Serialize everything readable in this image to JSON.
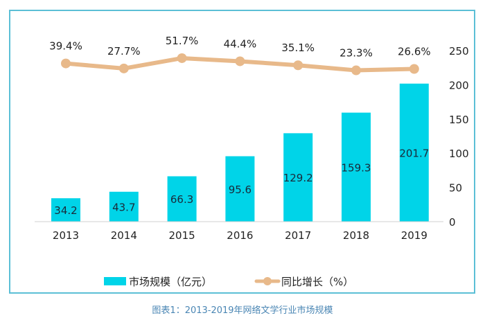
{
  "chart_data": {
    "type": "bar+line",
    "categories": [
      "2013",
      "2014",
      "2015",
      "2016",
      "2017",
      "2018",
      "2019"
    ],
    "series": [
      {
        "name": "市场规模（亿元）",
        "type": "bar",
        "axis": "right",
        "values": [
          34.2,
          43.7,
          66.3,
          95.6,
          129.2,
          159.3,
          201.7
        ],
        "labels": [
          "34.2",
          "43.7",
          "66.3",
          "95.6",
          "129.2",
          "159.3",
          "201.7"
        ],
        "color": "#00d4e8"
      },
      {
        "name": "同比增长（%）",
        "type": "line",
        "axis": "hidden",
        "values": [
          39.4,
          27.7,
          51.7,
          44.4,
          35.1,
          23.3,
          26.6
        ],
        "labels": [
          "39.4%",
          "27.7%",
          "51.7%",
          "44.4%",
          "35.1%",
          "23.3%",
          "26.6%"
        ],
        "color": "#e8b98a"
      }
    ],
    "y_right": {
      "lim": [
        0,
        250
      ],
      "ticks": [
        "0",
        "50",
        "100",
        "150",
        "200",
        "250"
      ]
    },
    "grid": false,
    "legend": "bottom",
    "caption": "图表1：2013-2019年网络文学行业市场规模",
    "frame_color": "#5bbfd6",
    "caption_color": "#4a86b4"
  }
}
